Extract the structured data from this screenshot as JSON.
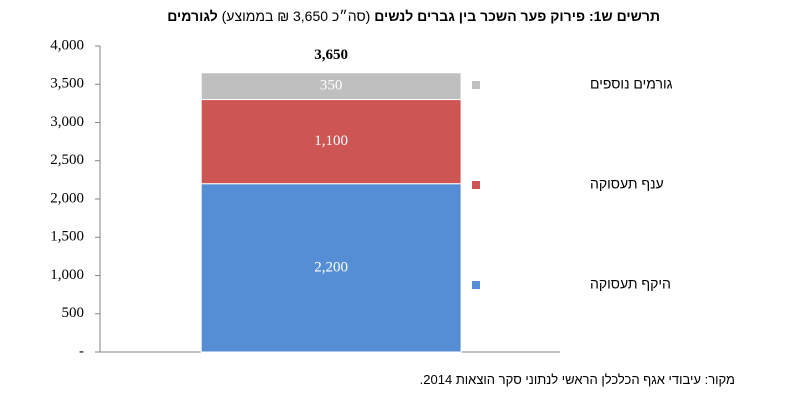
{
  "chart_data": {
    "type": "stacked-bar",
    "title": "תרשים ש1: פירוק פער השכר בין גברים לנשים",
    "title_note": "(סה״כ 3,650 ₪ בממוצע)",
    "title_end": "לגורמים",
    "source": "מקור: עיבודי אגף הכלכלן הראשי לנתוני סקר הוצאות 2014.",
    "categories": [
      null
    ],
    "series": [
      {
        "name": "היקף תעסוקה",
        "color": "#558ed5",
        "values": [
          2200
        ],
        "value_labels": [
          "2,200"
        ]
      },
      {
        "name": "ענף תעסוקה",
        "color": "#cd5553",
        "values": [
          1100
        ],
        "value_labels": [
          "1,100"
        ]
      },
      {
        "name": "גורמים נוספים",
        "color": "#bfbfbf",
        "values": [
          350
        ],
        "value_labels": [
          "350"
        ]
      }
    ],
    "total": {
      "value": 3650,
      "label": "3,650"
    },
    "ylim": [
      0,
      4000
    ],
    "yticks": [
      {
        "value": 0,
        "label": "-"
      },
      {
        "value": 500,
        "label": "500"
      },
      {
        "value": 1000,
        "label": "1,000"
      },
      {
        "value": 1500,
        "label": "1,500"
      },
      {
        "value": 2000,
        "label": "2,000"
      },
      {
        "value": 2500,
        "label": "2,500"
      },
      {
        "value": 3000,
        "label": "3,000"
      },
      {
        "value": 3500,
        "label": "3,500"
      },
      {
        "value": 4000,
        "label": "4,000"
      }
    ],
    "legend": "right"
  }
}
